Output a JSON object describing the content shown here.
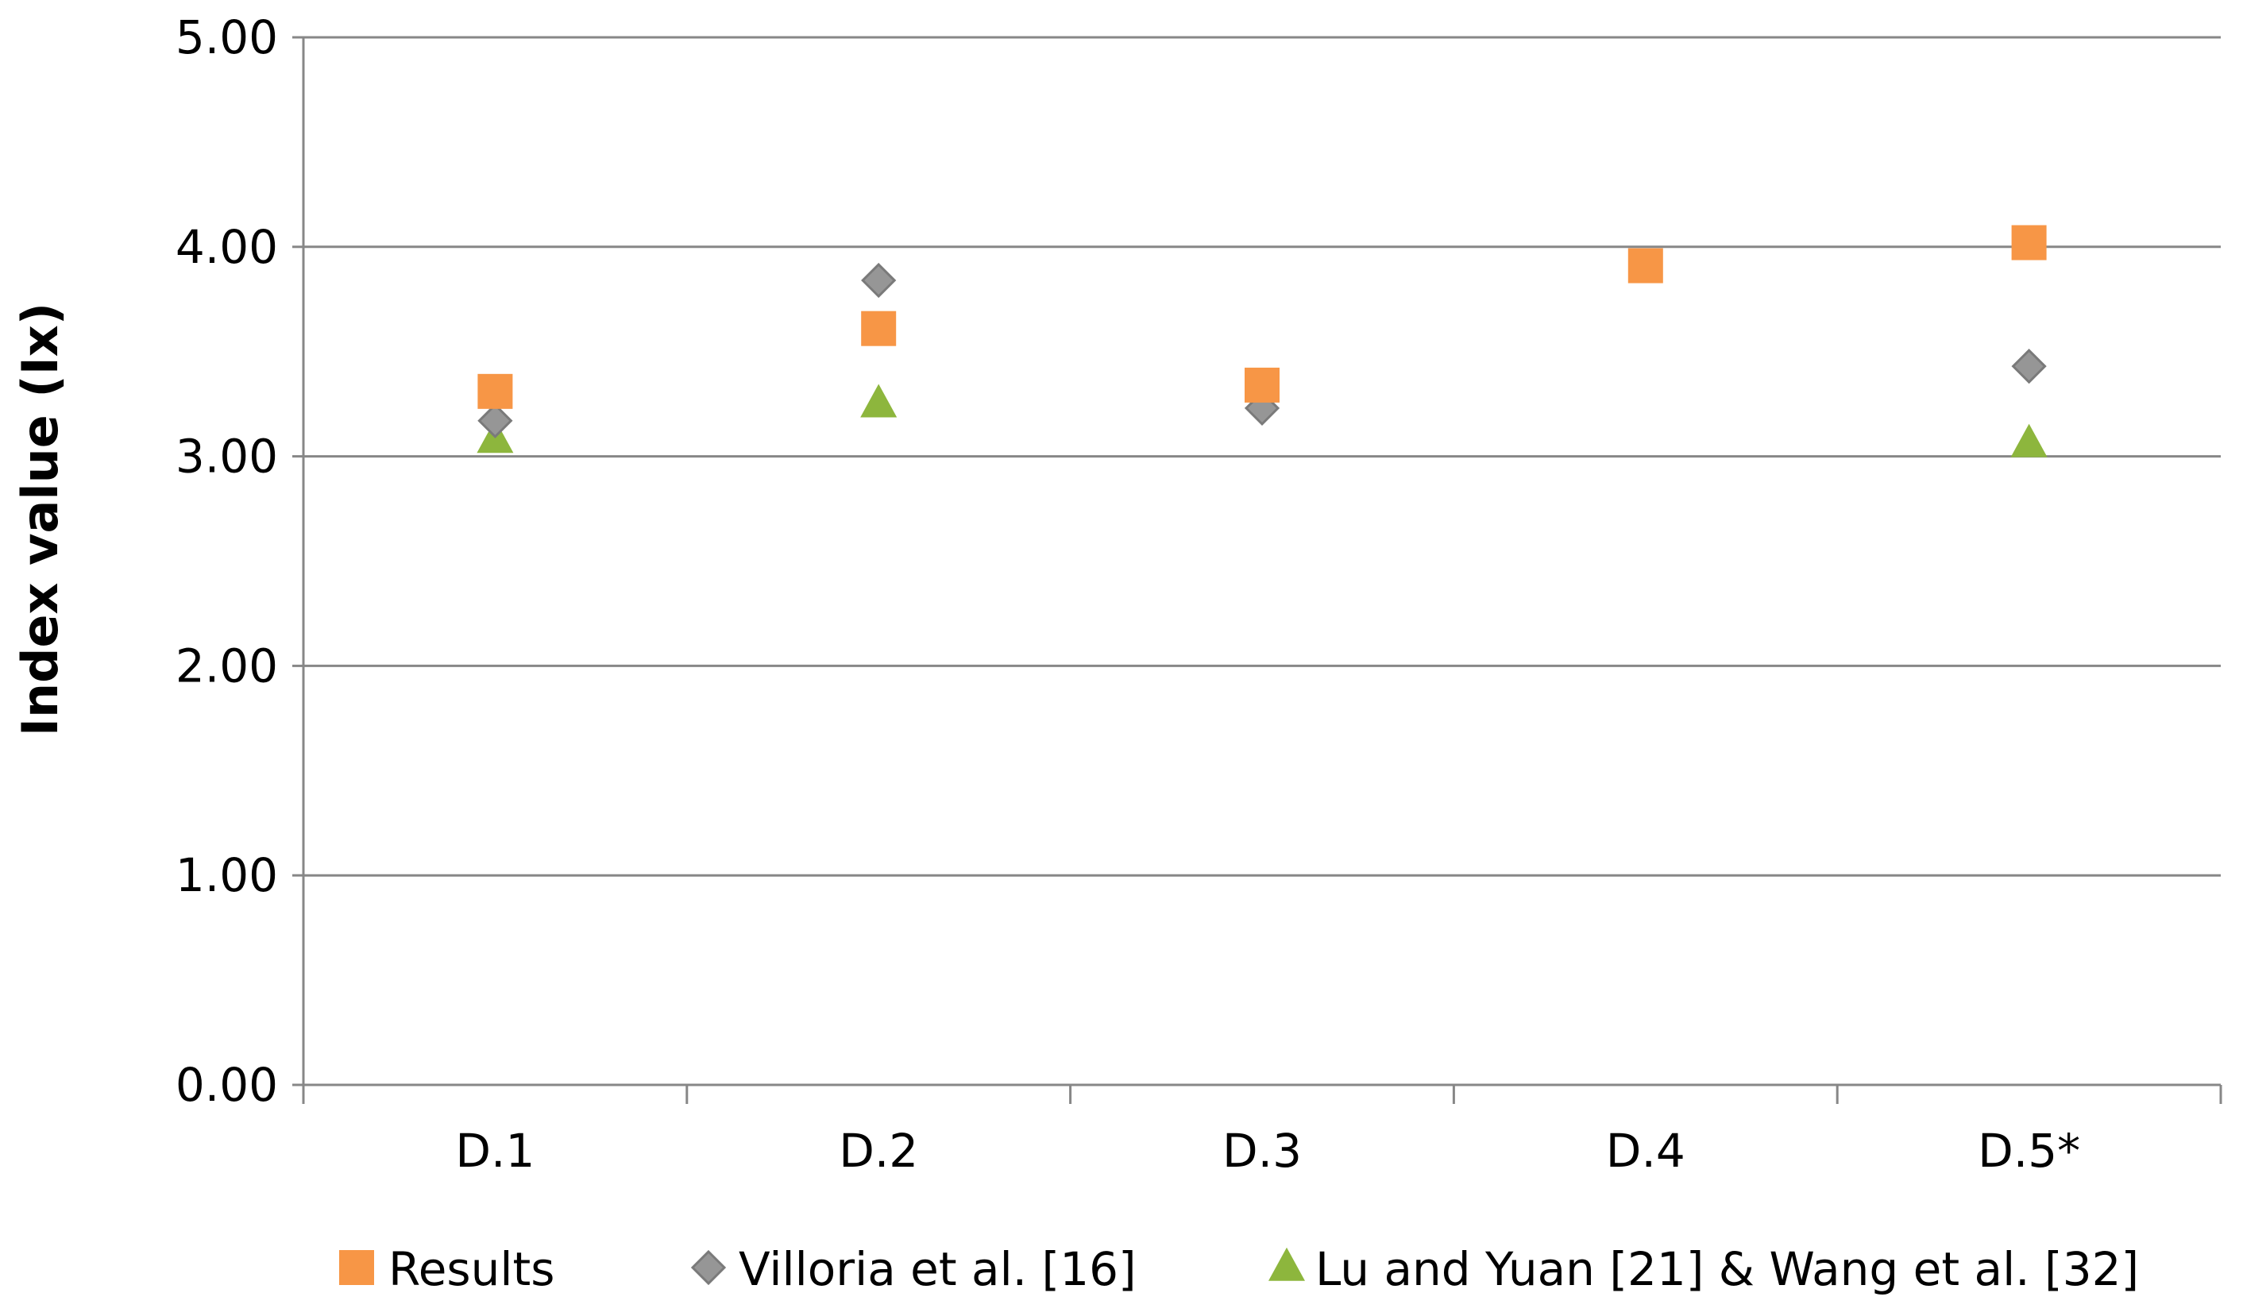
{
  "chart_data": {
    "type": "scatter",
    "title": "",
    "xlabel": "",
    "ylabel": "Index value  (Ix)",
    "categories": [
      "D.1",
      "D.2",
      "D.3",
      "D.4",
      "D.5*"
    ],
    "ylim": [
      0,
      5
    ],
    "yticks": [
      "0.00",
      "1.00",
      "2.00",
      "3.00",
      "4.00",
      "5.00"
    ],
    "grid": true,
    "legend_position": "bottom",
    "series": [
      {
        "name": "Results",
        "marker": "square",
        "color": "#F79646",
        "values": [
          3.31,
          3.61,
          3.34,
          3.91,
          4.02
        ]
      },
      {
        "name": "Villoria et al. [16]",
        "marker": "diamond",
        "color": "#969696",
        "values": [
          3.17,
          3.84,
          3.23,
          null,
          3.43
        ]
      },
      {
        "name": "Lu and Yuan [21] & Wang et al. [32]",
        "marker": "triangle",
        "color": "#8DB63D",
        "values": [
          3.08,
          3.25,
          null,
          null,
          3.06
        ]
      }
    ]
  }
}
